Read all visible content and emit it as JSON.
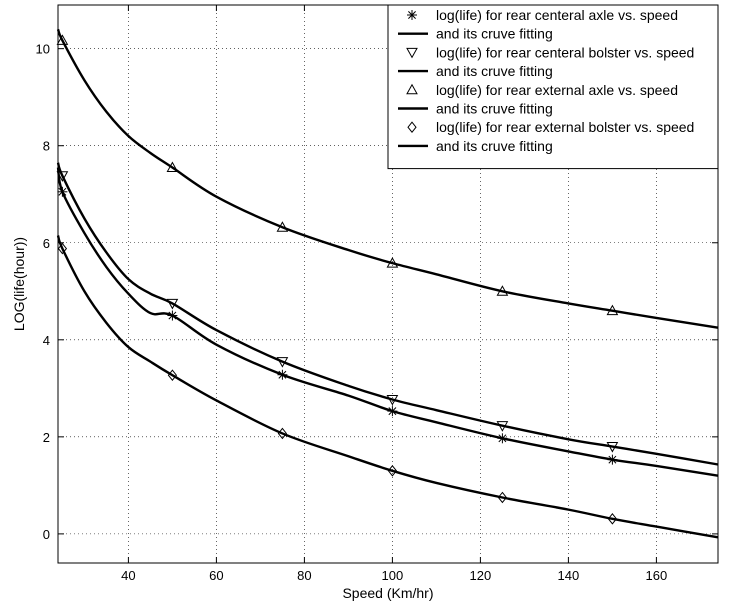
{
  "chart_data": {
    "type": "line",
    "xlabel": "Speed (Km/hr)",
    "ylabel": "LOG(life(hour))",
    "xlim": [
      24,
      174
    ],
    "ylim": [
      -0.6,
      10.9
    ],
    "xticks": [
      40,
      60,
      80,
      100,
      120,
      140,
      160
    ],
    "yticks": [
      0,
      2,
      4,
      6,
      8,
      10
    ],
    "grid": true,
    "legend_position": "top-right",
    "series": [
      {
        "name": "log(life) for rear centeral axle vs. speed",
        "marker": "asterisk",
        "points": {
          "x": [
            25,
            50,
            75,
            100,
            125,
            150
          ],
          "y": [
            7.05,
            4.5,
            3.28,
            2.53,
            1.97,
            1.53
          ]
        },
        "fit": {
          "x": [
            24,
            25,
            30,
            35,
            40,
            45,
            50,
            60,
            75,
            90,
            100,
            110,
            125,
            140,
            150,
            160,
            174
          ],
          "y": [
            7.55,
            7.05,
            6.2,
            5.5,
            4.95,
            4.55,
            4.5,
            3.9,
            3.28,
            2.85,
            2.53,
            2.3,
            1.97,
            1.7,
            1.53,
            1.4,
            1.2
          ]
        },
        "fit_label": "and its cruve fitting"
      },
      {
        "name": "log(life) for rear centeral bolster  vs. speed",
        "marker": "triangle-down",
        "points": {
          "x": [
            25,
            50,
            75,
            100,
            125,
            150
          ],
          "y": [
            7.38,
            4.75,
            3.55,
            2.77,
            2.23,
            1.8
          ]
        },
        "fit": {
          "x": [
            24,
            25,
            30,
            35,
            40,
            45,
            50,
            60,
            75,
            90,
            100,
            110,
            125,
            140,
            150,
            160,
            174
          ],
          "y": [
            7.65,
            7.38,
            6.5,
            5.8,
            5.25,
            4.95,
            4.75,
            4.2,
            3.55,
            3.05,
            2.77,
            2.55,
            2.23,
            1.95,
            1.8,
            1.65,
            1.43
          ]
        },
        "fit_label": "and its cruve fitting"
      },
      {
        "name": "log(life) for rear external axle vs. speed",
        "marker": "triangle-up",
        "points": {
          "x": [
            25,
            50,
            75,
            100,
            125,
            150
          ],
          "y": [
            10.17,
            7.55,
            6.32,
            5.58,
            5.0,
            4.6
          ]
        },
        "fit": {
          "x": [
            24,
            25,
            30,
            35,
            40,
            45,
            50,
            60,
            75,
            90,
            100,
            110,
            125,
            140,
            150,
            160,
            174
          ],
          "y": [
            10.4,
            10.17,
            9.35,
            8.7,
            8.2,
            7.85,
            7.55,
            6.95,
            6.32,
            5.85,
            5.58,
            5.35,
            5.0,
            4.75,
            4.6,
            4.45,
            4.25
          ]
        },
        "fit_label": "and its cruve fitting"
      },
      {
        "name": "log(life) for rear external bolster  vs. speed",
        "marker": "diamond",
        "points": {
          "x": [
            25,
            50,
            75,
            100,
            125,
            150
          ],
          "y": [
            5.88,
            3.27,
            2.07,
            1.3,
            0.75,
            0.31
          ]
        },
        "fit": {
          "x": [
            24,
            25,
            30,
            35,
            40,
            45,
            50,
            60,
            75,
            90,
            100,
            110,
            125,
            140,
            150,
            160,
            174
          ],
          "y": [
            6.15,
            5.88,
            5.0,
            4.35,
            3.85,
            3.55,
            3.27,
            2.75,
            2.07,
            1.6,
            1.3,
            1.05,
            0.75,
            0.5,
            0.31,
            0.15,
            -0.07
          ]
        },
        "fit_label": "and its cruve fitting"
      }
    ]
  }
}
